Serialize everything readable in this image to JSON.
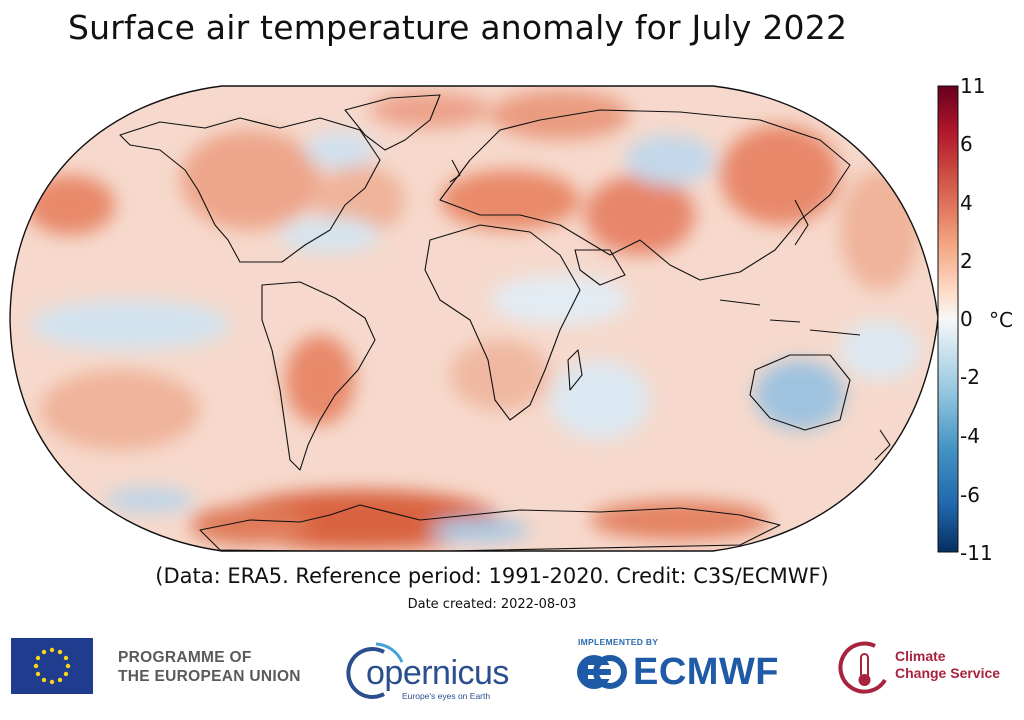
{
  "title": "Surface air temperature anomaly for July 2022",
  "colorbar": {
    "unit": "°C",
    "ticks": [
      "11",
      "6",
      "4",
      "2",
      "0",
      "-2",
      "-4",
      "-6",
      "-11"
    ],
    "colors": [
      "#053061",
      "#2166ac",
      "#4393c3",
      "#92c5de",
      "#d1e5f0",
      "#f7f7f7",
      "#fddbc7",
      "#f4a582",
      "#d6604d",
      "#b2182b",
      "#67001f"
    ]
  },
  "credit": "(Data: ERA5.  Reference period: 1991-2020.  Credit: C3S/ECMWF)",
  "date_created": "Date created: 2022-08-03",
  "footer": {
    "eu_programme": [
      "PROGRAMME OF",
      "THE EUROPEAN UNION"
    ],
    "copernicus": "opernicus",
    "copernicus_tagline": "Europe's eyes on Earth",
    "implemented_by": "IMPLEMENTED BY",
    "ecmwf": "ECMWF",
    "ccs": [
      "Climate",
      "Change Service"
    ]
  }
}
